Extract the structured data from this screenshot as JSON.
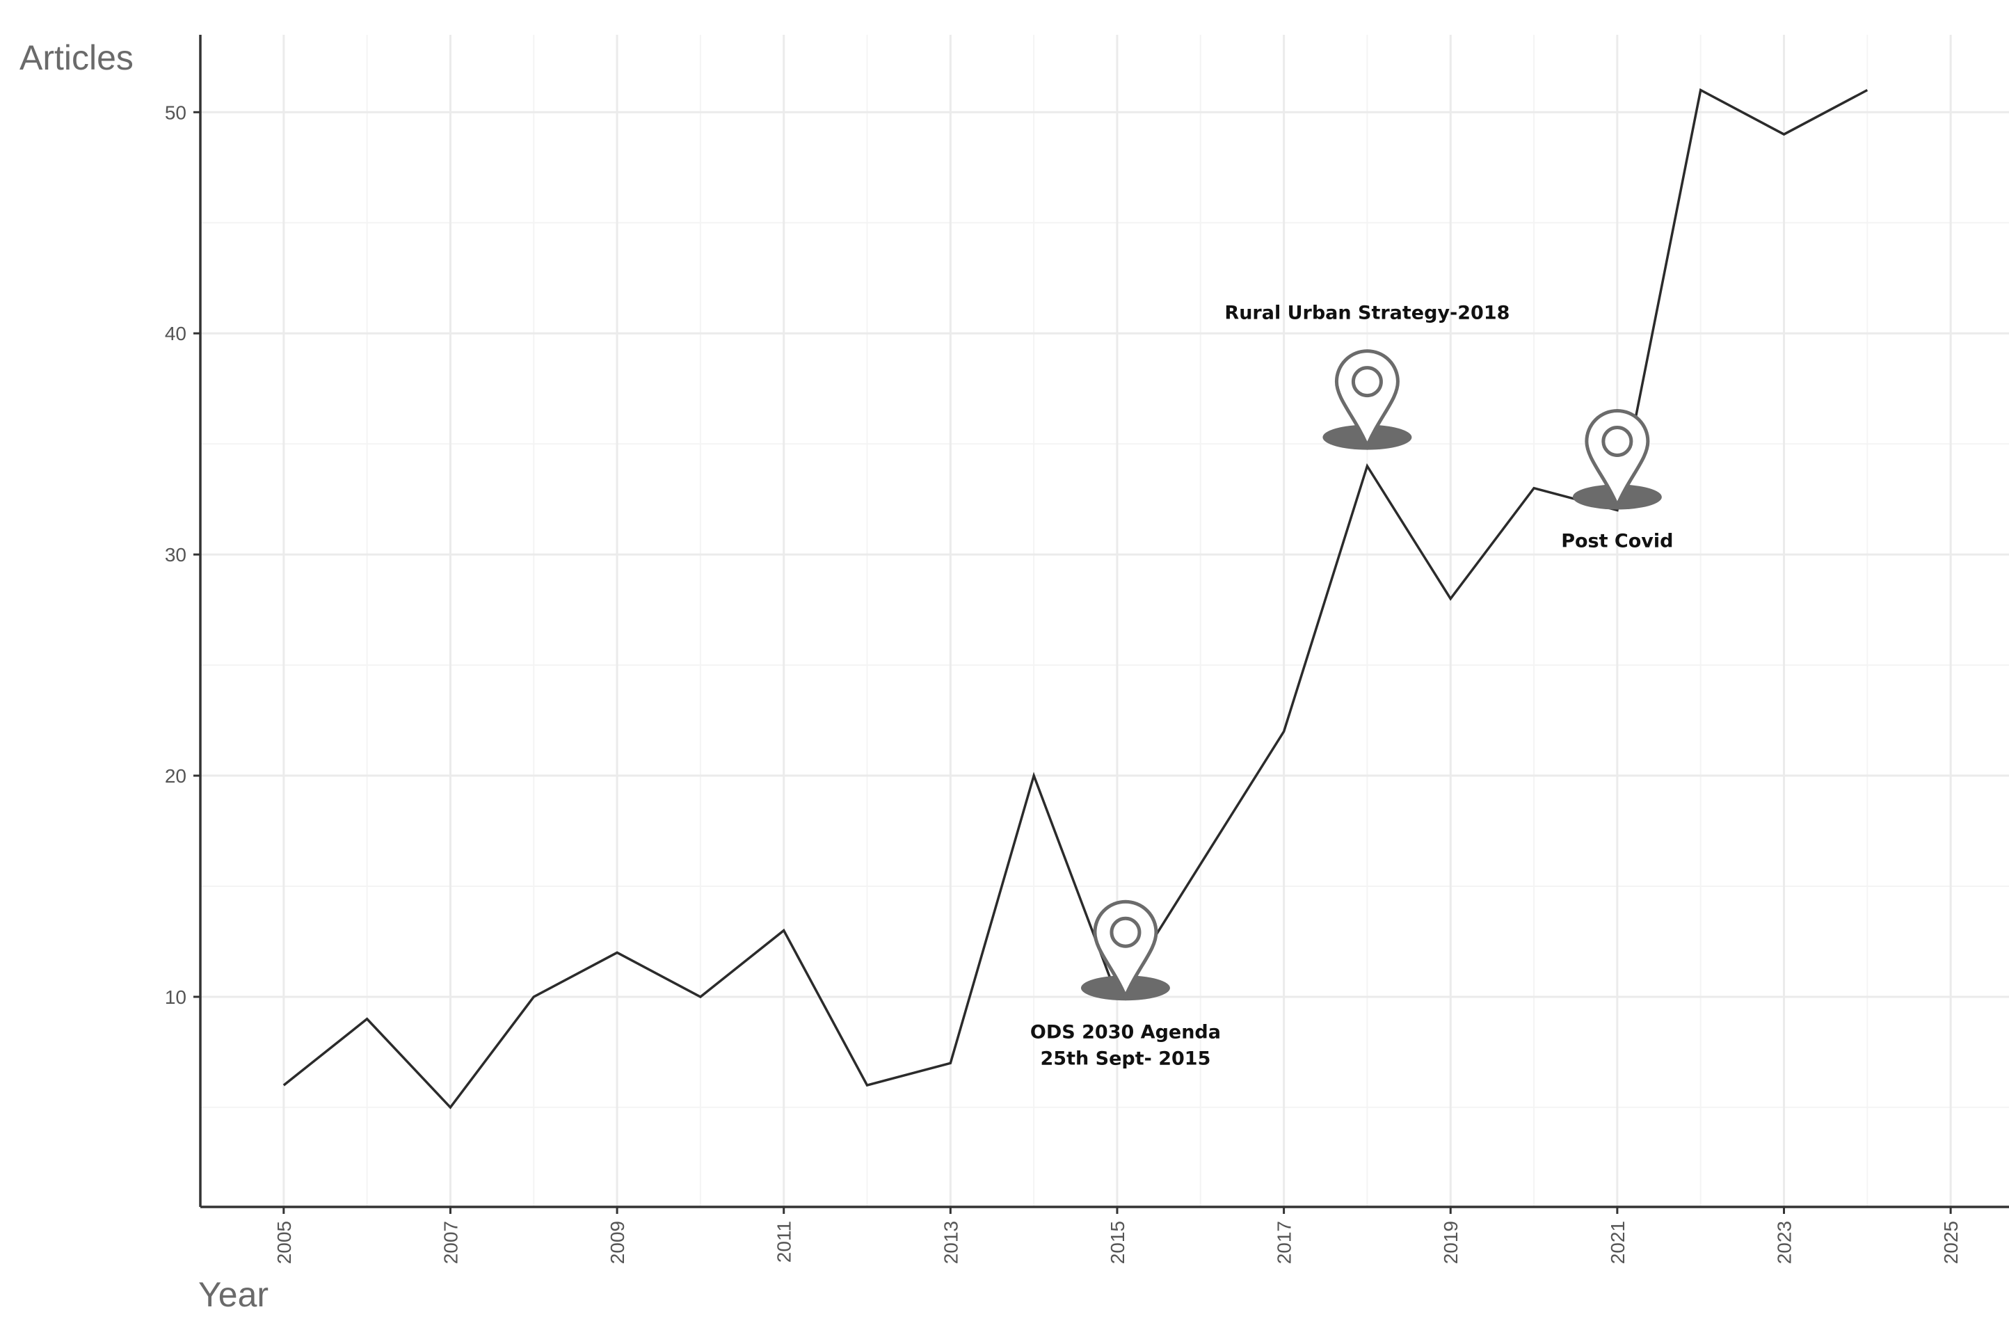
{
  "chart_data": {
    "type": "line",
    "ylabel": "Articles",
    "xlabel": "Year",
    "xlim": [
      2004,
      2025.7
    ],
    "ylim": [
      0.5,
      53.5
    ],
    "x_ticks": [
      "2005",
      "2007",
      "2009",
      "2011",
      "2013",
      "2015",
      "2017",
      "2019",
      "2021",
      "2023",
      "2025"
    ],
    "y_ticks": [
      "10",
      "20",
      "30",
      "40",
      "50"
    ],
    "grid": true,
    "series": [
      {
        "x": [
          2005,
          2006,
          2007,
          2008,
          2009,
          2010,
          2011,
          2012,
          2013,
          2014,
          2015,
          2016,
          2017,
          2018,
          2019,
          2020,
          2021,
          2022,
          2023,
          2024
        ],
        "values": [
          6,
          9,
          5,
          10,
          12,
          10,
          13,
          6,
          7,
          20,
          10,
          16,
          22,
          34,
          28,
          33,
          32,
          51,
          49,
          51
        ]
      }
    ],
    "annotations": [
      {
        "lines": [
          "ODS 2030 Agenda",
          "25th Sept- 2015"
        ],
        "x": 2015.1,
        "y": 10.4,
        "label_position": "below",
        "marker": "location-pin-icon"
      },
      {
        "lines": [
          "Rural Urban Strategy-2018"
        ],
        "x": 2018,
        "y": 35.3,
        "label_position": "above",
        "marker": "location-pin-icon"
      },
      {
        "lines": [
          "Post Covid"
        ],
        "x": 2021,
        "y": 32.6,
        "label_position": "below",
        "marker": "location-pin-icon"
      }
    ],
    "colors": {
      "line": "#2b2b2b",
      "marker": "#6b6b6b",
      "grid": "#ebebeb"
    }
  }
}
